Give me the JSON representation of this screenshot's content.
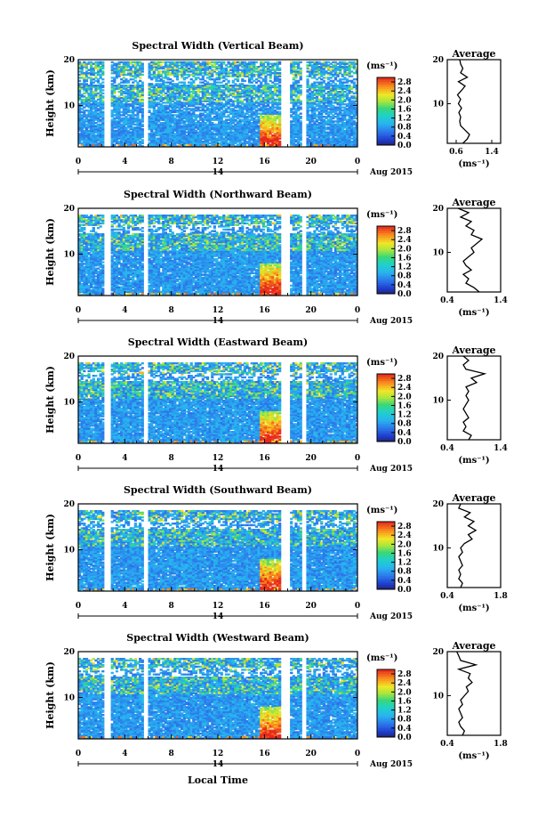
{
  "chart_data": {
    "type": "heatmap",
    "xlabel": "Local Time",
    "date_label": "14",
    "date_suffix": "Aug 2015",
    "x_ticks": [
      "0",
      "4",
      "8",
      "12",
      "16",
      "20",
      "0"
    ],
    "xlim": [
      0,
      24
    ],
    "ylabel": "Height (km)",
    "y_ticks": [
      "10",
      "20"
    ],
    "ylim": [
      1,
      20
    ],
    "colorbar_unit": "(ms⁻¹)",
    "colorbar_ticks": [
      "0.0",
      "0.4",
      "0.8",
      "1.2",
      "1.6",
      "2.0",
      "2.4",
      "2.8"
    ],
    "colorbar_range": [
      0,
      3.0
    ],
    "avg_title": "Average",
    "avg_unit": "(ms⁻¹)",
    "panels": [
      {
        "title": "Spectral Width (Vertical Beam)",
        "avg_xticks": [
          "0.6",
          "1.4"
        ],
        "avg_xlim": [
          0.4,
          1.6
        ],
        "avg_profile": {
          "height": [
            1,
            2,
            3,
            4,
            5,
            6,
            7,
            8,
            9,
            10,
            11,
            12,
            13,
            14,
            15,
            16,
            17,
            18,
            19,
            20
          ],
          "value": [
            0.75,
            0.85,
            0.9,
            0.8,
            0.7,
            0.68,
            0.7,
            0.66,
            0.72,
            0.65,
            0.7,
            0.63,
            0.72,
            0.8,
            0.65,
            0.85,
            0.7,
            0.75,
            0.7,
            0.68
          ]
        }
      },
      {
        "title": "Spectral Width (Northward Beam)",
        "avg_xticks": [
          "0.4",
          "1.4"
        ],
        "avg_xlim": [
          0.4,
          1.4
        ],
        "avg_profile": {
          "height": [
            1,
            2,
            3,
            4,
            5,
            6,
            7,
            8,
            9,
            10,
            11,
            12,
            13,
            14,
            15,
            16,
            17,
            18,
            19,
            20
          ],
          "value": [
            1.0,
            0.9,
            0.75,
            0.8,
            0.7,
            0.85,
            0.75,
            0.7,
            0.8,
            0.9,
            0.85,
            0.95,
            1.05,
            0.85,
            0.9,
            0.75,
            0.85,
            0.65,
            0.8,
            0.6
          ]
        }
      },
      {
        "title": "Spectral Width (Eastward Beam)",
        "avg_xticks": [
          "0.4",
          "1.4"
        ],
        "avg_xlim": [
          0.4,
          1.4
        ],
        "avg_profile": {
          "height": [
            1,
            2,
            3,
            4,
            5,
            6,
            7,
            8,
            9,
            10,
            11,
            12,
            13,
            14,
            15,
            16,
            17,
            18,
            19,
            20
          ],
          "value": [
            0.8,
            0.85,
            0.7,
            0.75,
            0.7,
            0.8,
            0.75,
            0.7,
            0.75,
            0.8,
            0.75,
            0.8,
            0.75,
            0.95,
            0.85,
            1.1,
            0.75,
            0.7,
            0.8,
            0.7
          ]
        }
      },
      {
        "title": "Spectral Width (Southward Beam)",
        "avg_xticks": [
          "0.4",
          "1.8"
        ],
        "avg_xlim": [
          0.4,
          1.8
        ],
        "avg_profile": {
          "height": [
            1,
            2,
            3,
            4,
            5,
            6,
            7,
            8,
            9,
            10,
            11,
            12,
            13,
            14,
            15,
            16,
            17,
            18,
            19,
            20
          ],
          "value": [
            0.75,
            0.8,
            0.7,
            0.75,
            0.7,
            0.8,
            0.75,
            0.7,
            0.8,
            0.75,
            0.85,
            1.05,
            0.95,
            1.15,
            0.95,
            1.1,
            0.85,
            1.0,
            0.7,
            0.75
          ]
        }
      },
      {
        "title": "Spectral Width (Westward Beam)",
        "avg_xticks": [
          "0.4",
          "1.8"
        ],
        "avg_xlim": [
          0.4,
          1.8
        ],
        "avg_profile": {
          "height": [
            1,
            2,
            3,
            4,
            5,
            6,
            7,
            8,
            9,
            10,
            11,
            12,
            13,
            14,
            15,
            16,
            17,
            18,
            19,
            20
          ],
          "value": [
            0.8,
            0.85,
            0.75,
            0.7,
            0.8,
            0.75,
            0.7,
            0.8,
            0.75,
            0.85,
            0.95,
            0.9,
            1.05,
            0.95,
            1.0,
            0.7,
            1.15,
            0.75,
            0.7,
            0.65
          ]
        }
      }
    ]
  }
}
